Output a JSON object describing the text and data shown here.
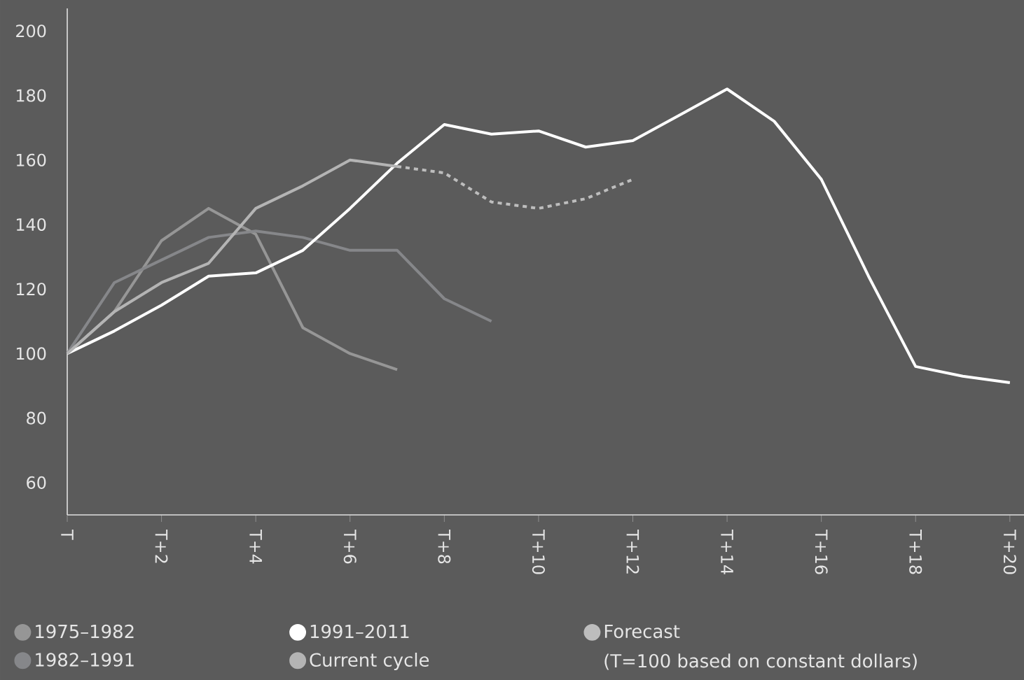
{
  "chart_data": {
    "type": "line",
    "ylim": [
      50,
      207
    ],
    "categories": [
      "T",
      null,
      "T+2",
      null,
      "T+4",
      null,
      "T+6",
      null,
      "T+8",
      null,
      "T+10",
      null,
      "T+12",
      null,
      "T+14",
      null,
      "T+16",
      null,
      "T+18",
      null,
      "T+20"
    ],
    "yticks": [
      60,
      80,
      100,
      120,
      140,
      160,
      180,
      200
    ],
    "legend": "bottom",
    "marker": "none",
    "annotations": [
      "(T=100 based on constant dollars)"
    ],
    "series": [
      {
        "name": "1975–1982",
        "color": "#969696",
        "values": [
          100,
          113,
          135,
          145,
          137,
          108,
          100,
          95,
          null,
          null,
          null,
          null,
          null,
          null,
          null,
          null,
          null,
          null,
          null,
          null,
          null
        ]
      },
      {
        "name": "1982–1991",
        "color": "#86878a",
        "values": [
          100,
          122,
          129,
          136,
          138,
          136,
          132,
          132,
          117,
          110,
          null,
          null,
          null,
          null,
          null,
          null,
          null,
          null,
          null,
          null,
          null
        ]
      },
      {
        "name": "1991–2011",
        "color": "#ffffff",
        "values": [
          100,
          107,
          115,
          124,
          125,
          132,
          145,
          159,
          171,
          168,
          169,
          164,
          166,
          174,
          182,
          172,
          154,
          124,
          96,
          93,
          91
        ]
      },
      {
        "name": "Current cycle",
        "color": "#b4b4b4",
        "values": [
          100,
          113,
          122,
          128,
          145,
          152,
          160,
          158,
          null,
          null,
          null,
          null,
          null,
          null,
          null,
          null,
          null,
          null,
          null,
          null,
          null
        ]
      },
      {
        "name": "Forecast",
        "color": "#bdbdbd",
        "line_style": "dotted",
        "values": [
          null,
          null,
          null,
          null,
          null,
          null,
          null,
          158,
          156,
          147,
          145,
          148,
          154,
          null,
          null,
          null,
          null,
          null,
          null,
          null,
          null
        ]
      }
    ]
  }
}
